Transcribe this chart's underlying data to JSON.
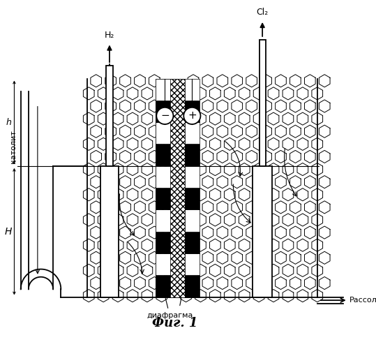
{
  "fig_title": "Фиг. 1",
  "label_diafragma": "диафрагма",
  "label_katolit": "католит",
  "label_rassol": "Рассол",
  "label_H2": "H₂",
  "label_Cl2": "Cl₂",
  "label_h": "h",
  "label_H": "H",
  "bg_color": "white",
  "lw_main": 1.3,
  "lw_thin": 0.8
}
